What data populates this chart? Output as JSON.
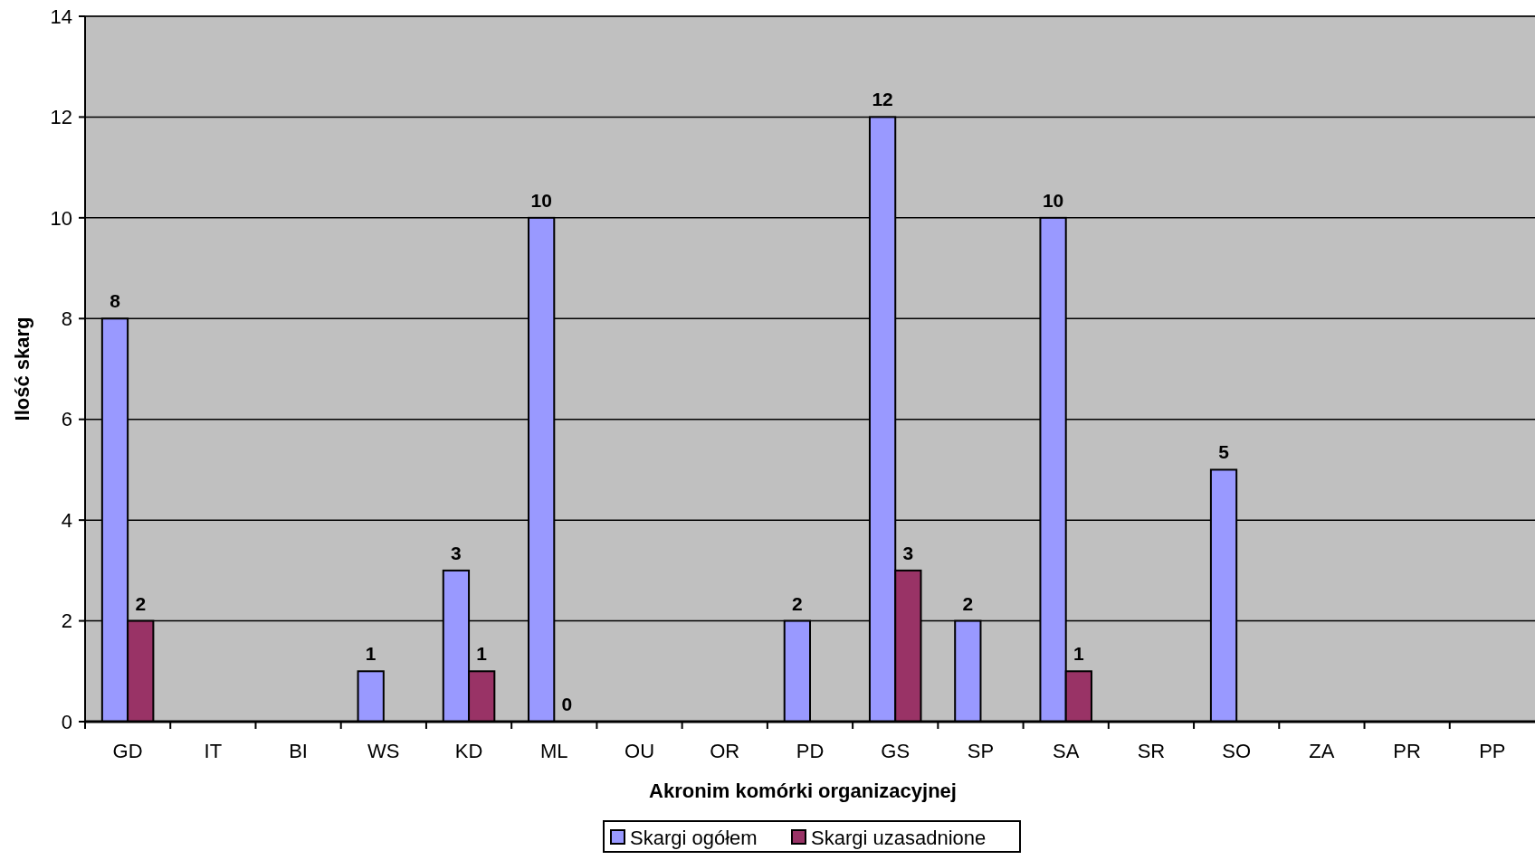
{
  "chart_data": {
    "type": "bar",
    "categories": [
      "GD",
      "IT",
      "BI",
      "WS",
      "KD",
      "ML",
      "OU",
      "OR",
      "PD",
      "GS",
      "SP",
      "SA",
      "SR",
      "SO",
      "ZA",
      "PR",
      "PP"
    ],
    "series": [
      {
        "name": "Skargi ogółem",
        "color": "#9999ff",
        "values": [
          8,
          null,
          null,
          1,
          3,
          10,
          null,
          null,
          2,
          12,
          2,
          10,
          null,
          5,
          null,
          null,
          null
        ]
      },
      {
        "name": "Skargi uzasadnione",
        "color": "#993366",
        "values": [
          2,
          null,
          null,
          null,
          1,
          0,
          null,
          null,
          null,
          3,
          null,
          1,
          null,
          null,
          null,
          null,
          null
        ]
      }
    ],
    "xlabel": "Akronim komórki organizacyjnej",
    "ylabel": "Ilość skarg",
    "ylim": [
      0,
      14
    ],
    "yticks": [
      0,
      2,
      4,
      6,
      8,
      10,
      12,
      14
    ],
    "grid": "y",
    "legend": "bottom",
    "data_labels": true
  }
}
